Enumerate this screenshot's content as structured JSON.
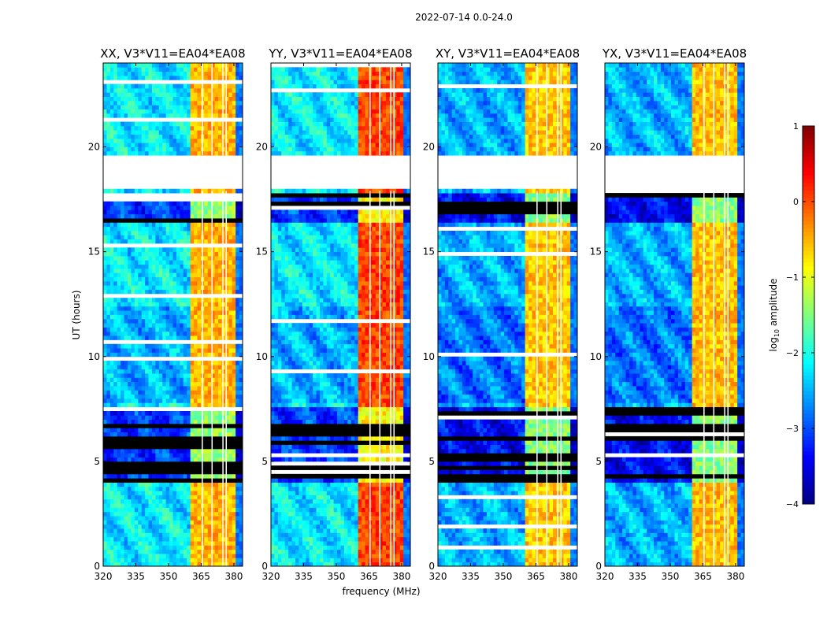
{
  "chart_data": {
    "type": "heatmap",
    "title": "2022-07-14 0.0-24.0",
    "xlabel": "frequency (MHz)",
    "ylabel": "UT (hours)",
    "xlim": [
      320,
      384
    ],
    "ylim": [
      0,
      24
    ],
    "xticks": [
      320,
      335,
      350,
      365,
      380
    ],
    "yticks": [
      0,
      5,
      10,
      15,
      20
    ],
    "colorbar": {
      "label": "log10 amplitude",
      "label_main": "log",
      "label_sub": "10",
      "label_rest": " amplitude",
      "range": [
        -4,
        1
      ],
      "ticks": [
        1,
        0,
        -1,
        -2,
        -3,
        -4
      ],
      "colormap": "jet"
    },
    "structure": {
      "background_level": -2.2,
      "rfi_band_mhz": [
        360,
        380
      ],
      "rfi_gap_lines_mhz": [
        365.5,
        370,
        375,
        376.5
      ],
      "above_band_level": -2.8,
      "no_data_hours": [
        17.9,
        19.6
      ],
      "flagged_hours": [
        [
          3.9,
          7.7
        ],
        [
          16.3,
          17.9
        ]
      ],
      "quiet_hours_level": -2.5
    },
    "panels": [
      {
        "title": "XX, V3*V11=EA04*EA08",
        "band_level": -0.5
      },
      {
        "title": "YY, V3*V11=EA04*EA08",
        "band_level": 0.05
      },
      {
        "title": "XY, V3*V11=EA04*EA08",
        "band_level": -0.6
      },
      {
        "title": "YX, V3*V11=EA04*EA08",
        "band_level": -0.55
      }
    ]
  }
}
